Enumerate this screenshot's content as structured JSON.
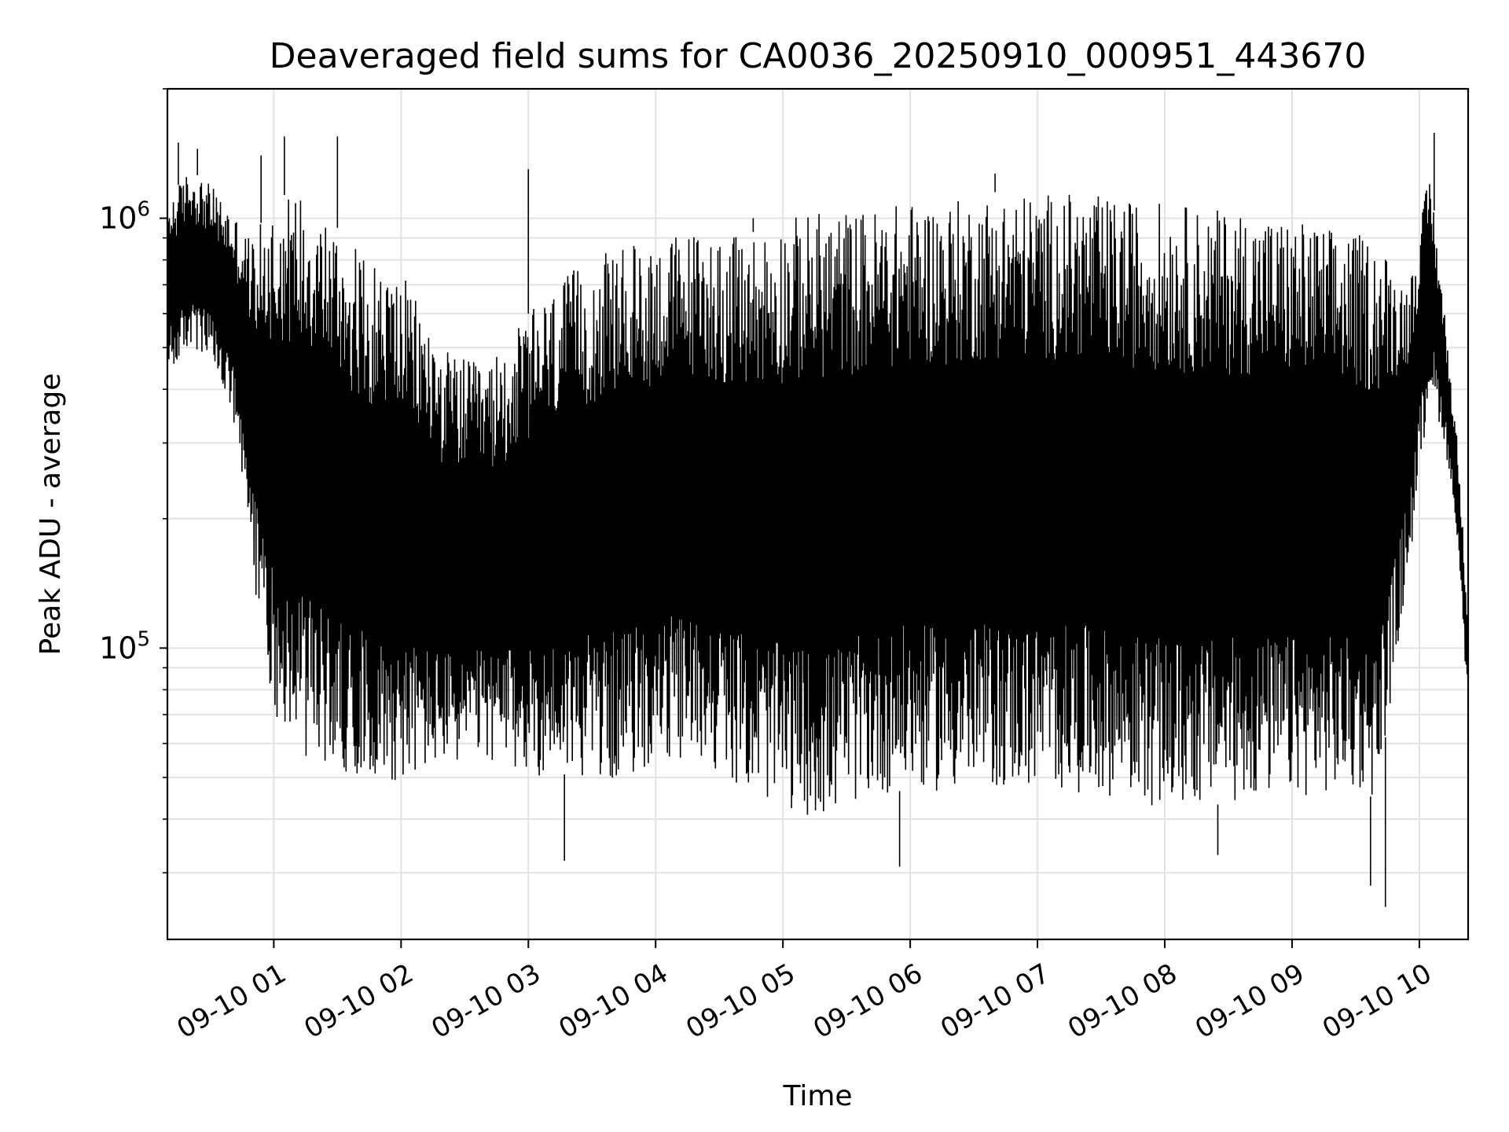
{
  "chart_data": {
    "type": "line",
    "title": "Deaveraged field sums for CA0036_20250910_000951_443670",
    "xlabel": "Time",
    "ylabel": "Peak ADU - average",
    "yscale": "log",
    "ylim": [
      21000,
      2000000
    ],
    "xlim": [
      "09-10 00:09:51",
      "09-10 10:23:00"
    ],
    "grid": true,
    "color": "#000000",
    "x_ticks": [
      "09-10 01",
      "09-10 02",
      "09-10 03",
      "09-10 04",
      "09-10 05",
      "09-10 06",
      "09-10 07",
      "09-10 08",
      "09-10 09",
      "09-10 10"
    ],
    "y_ticks": [
      {
        "base": "10",
        "exp": "5",
        "value": 100000
      },
      {
        "base": "10",
        "exp": "6",
        "value": 1000000
      }
    ],
    "envelope": {
      "x": [
        "09-10 00:10",
        "09-10 00:20",
        "09-10 00:30",
        "09-10 00:40",
        "09-10 00:50",
        "09-10 01:00",
        "09-10 01:15",
        "09-10 01:30",
        "09-10 01:45",
        "09-10 02:00",
        "09-10 02:20",
        "09-10 02:40",
        "09-10 03:00",
        "09-10 03:20",
        "09-10 03:40",
        "09-10 04:00",
        "09-10 04:20",
        "09-10 04:40",
        "09-10 05:00",
        "09-10 05:20",
        "09-10 05:40",
        "09-10 06:00",
        "09-10 06:20",
        "09-10 06:40",
        "09-10 07:00",
        "09-10 07:20",
        "09-10 07:40",
        "09-10 08:00",
        "09-10 08:20",
        "09-10 08:40",
        "09-10 09:00",
        "09-10 09:20",
        "09-10 09:40",
        "09-10 09:55",
        "09-10 10:05",
        "09-10 10:12",
        "09-10 10:18",
        "09-10 10:23"
      ],
      "high": [
        1100000,
        1300000,
        1200000,
        1050000,
        900000,
        1100000,
        1200000,
        950000,
        800000,
        750000,
        500000,
        450000,
        600000,
        750000,
        850000,
        900000,
        950000,
        900000,
        1000000,
        1050000,
        1050000,
        1100000,
        1100000,
        1150000,
        1150000,
        1150000,
        1100000,
        1100000,
        1050000,
        1050000,
        1000000,
        950000,
        900000,
        700000,
        1300000,
        600000,
        300000,
        120000
      ],
      "low": [
        420000,
        500000,
        460000,
        350000,
        150000,
        70000,
        56000,
        52000,
        50000,
        49000,
        53000,
        55000,
        50000,
        51000,
        49000,
        53000,
        55000,
        48000,
        42000,
        40000,
        45000,
        47000,
        46000,
        47000,
        47000,
        46000,
        45000,
        42000,
        43000,
        44000,
        45000,
        46000,
        45000,
        150000,
        400000,
        300000,
        180000,
        70000
      ]
    },
    "spikes": [
      {
        "x": "09-10 00:15",
        "y": 1500000
      },
      {
        "x": "09-10 00:24",
        "y": 1450000
      },
      {
        "x": "09-10 00:54",
        "y": 1400000
      },
      {
        "x": "09-10 01:05",
        "y": 1550000
      },
      {
        "x": "09-10 01:30",
        "y": 1550000
      },
      {
        "x": "09-10 03:00",
        "y": 1300000
      },
      {
        "x": "09-10 04:46",
        "y": 1000000
      },
      {
        "x": "09-10 06:40",
        "y": 1270000
      },
      {
        "x": "09-10 10:07",
        "y": 1580000
      },
      {
        "x": "09-10 03:17",
        "y": 32000
      },
      {
        "x": "09-10 05:55",
        "y": 31000
      },
      {
        "x": "09-10 09:44",
        "y": 25000
      },
      {
        "x": "09-10 09:37",
        "y": 28000
      },
      {
        "x": "09-10 08:25",
        "y": 33000
      }
    ]
  }
}
